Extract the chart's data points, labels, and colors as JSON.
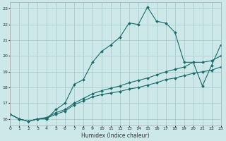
{
  "xlabel": "Humidex (Indice chaleur)",
  "bg_color": "#cce8e8",
  "grid_color": "#aacccc",
  "line_color": "#1a6b6b",
  "xlim": [
    0,
    23
  ],
  "ylim": [
    15.6,
    23.4
  ],
  "xticks": [
    0,
    1,
    2,
    3,
    4,
    5,
    6,
    7,
    8,
    9,
    10,
    11,
    12,
    13,
    14,
    15,
    16,
    17,
    18,
    19,
    20,
    21,
    22,
    23
  ],
  "yticks": [
    16,
    17,
    18,
    19,
    20,
    21,
    22,
    23
  ],
  "line1_x": [
    0,
    1,
    2,
    3,
    4,
    5,
    6,
    7,
    8,
    9,
    10,
    11,
    12,
    13,
    14,
    15,
    16,
    17,
    18,
    19,
    20,
    21,
    22,
    23
  ],
  "line1_y": [
    16.3,
    16.0,
    15.85,
    16.0,
    16.0,
    16.6,
    17.0,
    18.2,
    18.5,
    19.6,
    20.3,
    20.7,
    21.2,
    22.1,
    22.0,
    23.1,
    22.2,
    22.1,
    21.5,
    19.6,
    19.6,
    18.1,
    19.4,
    20.7
  ],
  "line2_x": [
    0,
    1,
    2,
    3,
    4,
    5,
    6,
    7,
    8,
    9,
    10,
    11,
    12,
    13,
    14,
    15,
    16,
    17,
    18,
    19,
    20,
    21,
    22,
    23
  ],
  "line2_y": [
    16.3,
    16.0,
    15.85,
    16.0,
    16.1,
    16.4,
    16.6,
    17.0,
    17.3,
    17.6,
    17.8,
    17.95,
    18.1,
    18.3,
    18.45,
    18.6,
    18.8,
    19.0,
    19.15,
    19.3,
    19.6,
    19.6,
    19.7,
    20.0
  ],
  "line3_x": [
    0,
    1,
    2,
    3,
    4,
    5,
    6,
    7,
    8,
    9,
    10,
    11,
    12,
    13,
    14,
    15,
    16,
    17,
    18,
    19,
    20,
    21,
    22,
    23
  ],
  "line3_y": [
    16.3,
    16.0,
    15.85,
    16.0,
    16.05,
    16.3,
    16.5,
    16.9,
    17.15,
    17.4,
    17.55,
    17.65,
    17.75,
    17.9,
    18.0,
    18.15,
    18.3,
    18.5,
    18.6,
    18.75,
    18.9,
    19.0,
    19.1,
    19.3
  ]
}
